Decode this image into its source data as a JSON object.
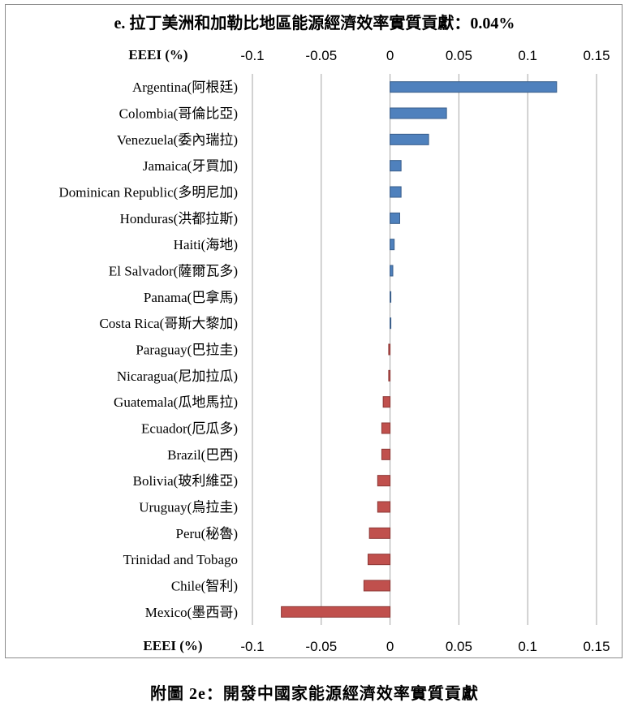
{
  "chart_data": {
    "type": "bar",
    "orientation": "horizontal",
    "title": "e. 拉丁美洲和加勒比地區能源經濟效率實質貢獻：0.04%",
    "xlabel": "EEEI (%)",
    "xlabel_bottom": "EEEI (%)",
    "xlim": [
      -0.1,
      0.15
    ],
    "xticks": [
      "-0.1",
      "-0.05",
      "0",
      "0.05",
      "0.1",
      "0.15"
    ],
    "grid": "vertical",
    "categories": [
      "Argentina(阿根廷)",
      "Colombia(哥倫比亞)",
      "Venezuela(委內瑞拉)",
      "Jamaica(牙買加)",
      "Dominican Republic(多明尼加)",
      "Honduras(洪都拉斯)",
      "Haiti(海地)",
      "El Salvador(薩爾瓦多)",
      "Panama(巴拿馬)",
      "Costa Rica(哥斯大黎加)",
      "Paraguay(巴拉圭)",
      "Nicaragua(尼加拉瓜)",
      "Guatemala(瓜地馬拉)",
      "Ecuador(厄瓜多)",
      "Brazil(巴西)",
      "Bolivia(玻利維亞)",
      "Uruguay(烏拉圭)",
      "Peru(秘魯)",
      "Trinidad and Tobago",
      "Chile(智利)",
      "Mexico(墨西哥)"
    ],
    "values": [
      0.121,
      0.041,
      0.028,
      0.008,
      0.008,
      0.007,
      0.003,
      0.002,
      0.0005,
      0.0005,
      -0.001,
      -0.001,
      -0.005,
      -0.006,
      -0.006,
      -0.009,
      -0.009,
      -0.015,
      -0.016,
      -0.019,
      -0.079
    ],
    "colors": {
      "positive": "#4f81bd",
      "negative": "#c0504d",
      "grid": "#a6a6a6"
    }
  },
  "caption": "附圖 2e：開發中國家能源經濟效率實質貢獻"
}
